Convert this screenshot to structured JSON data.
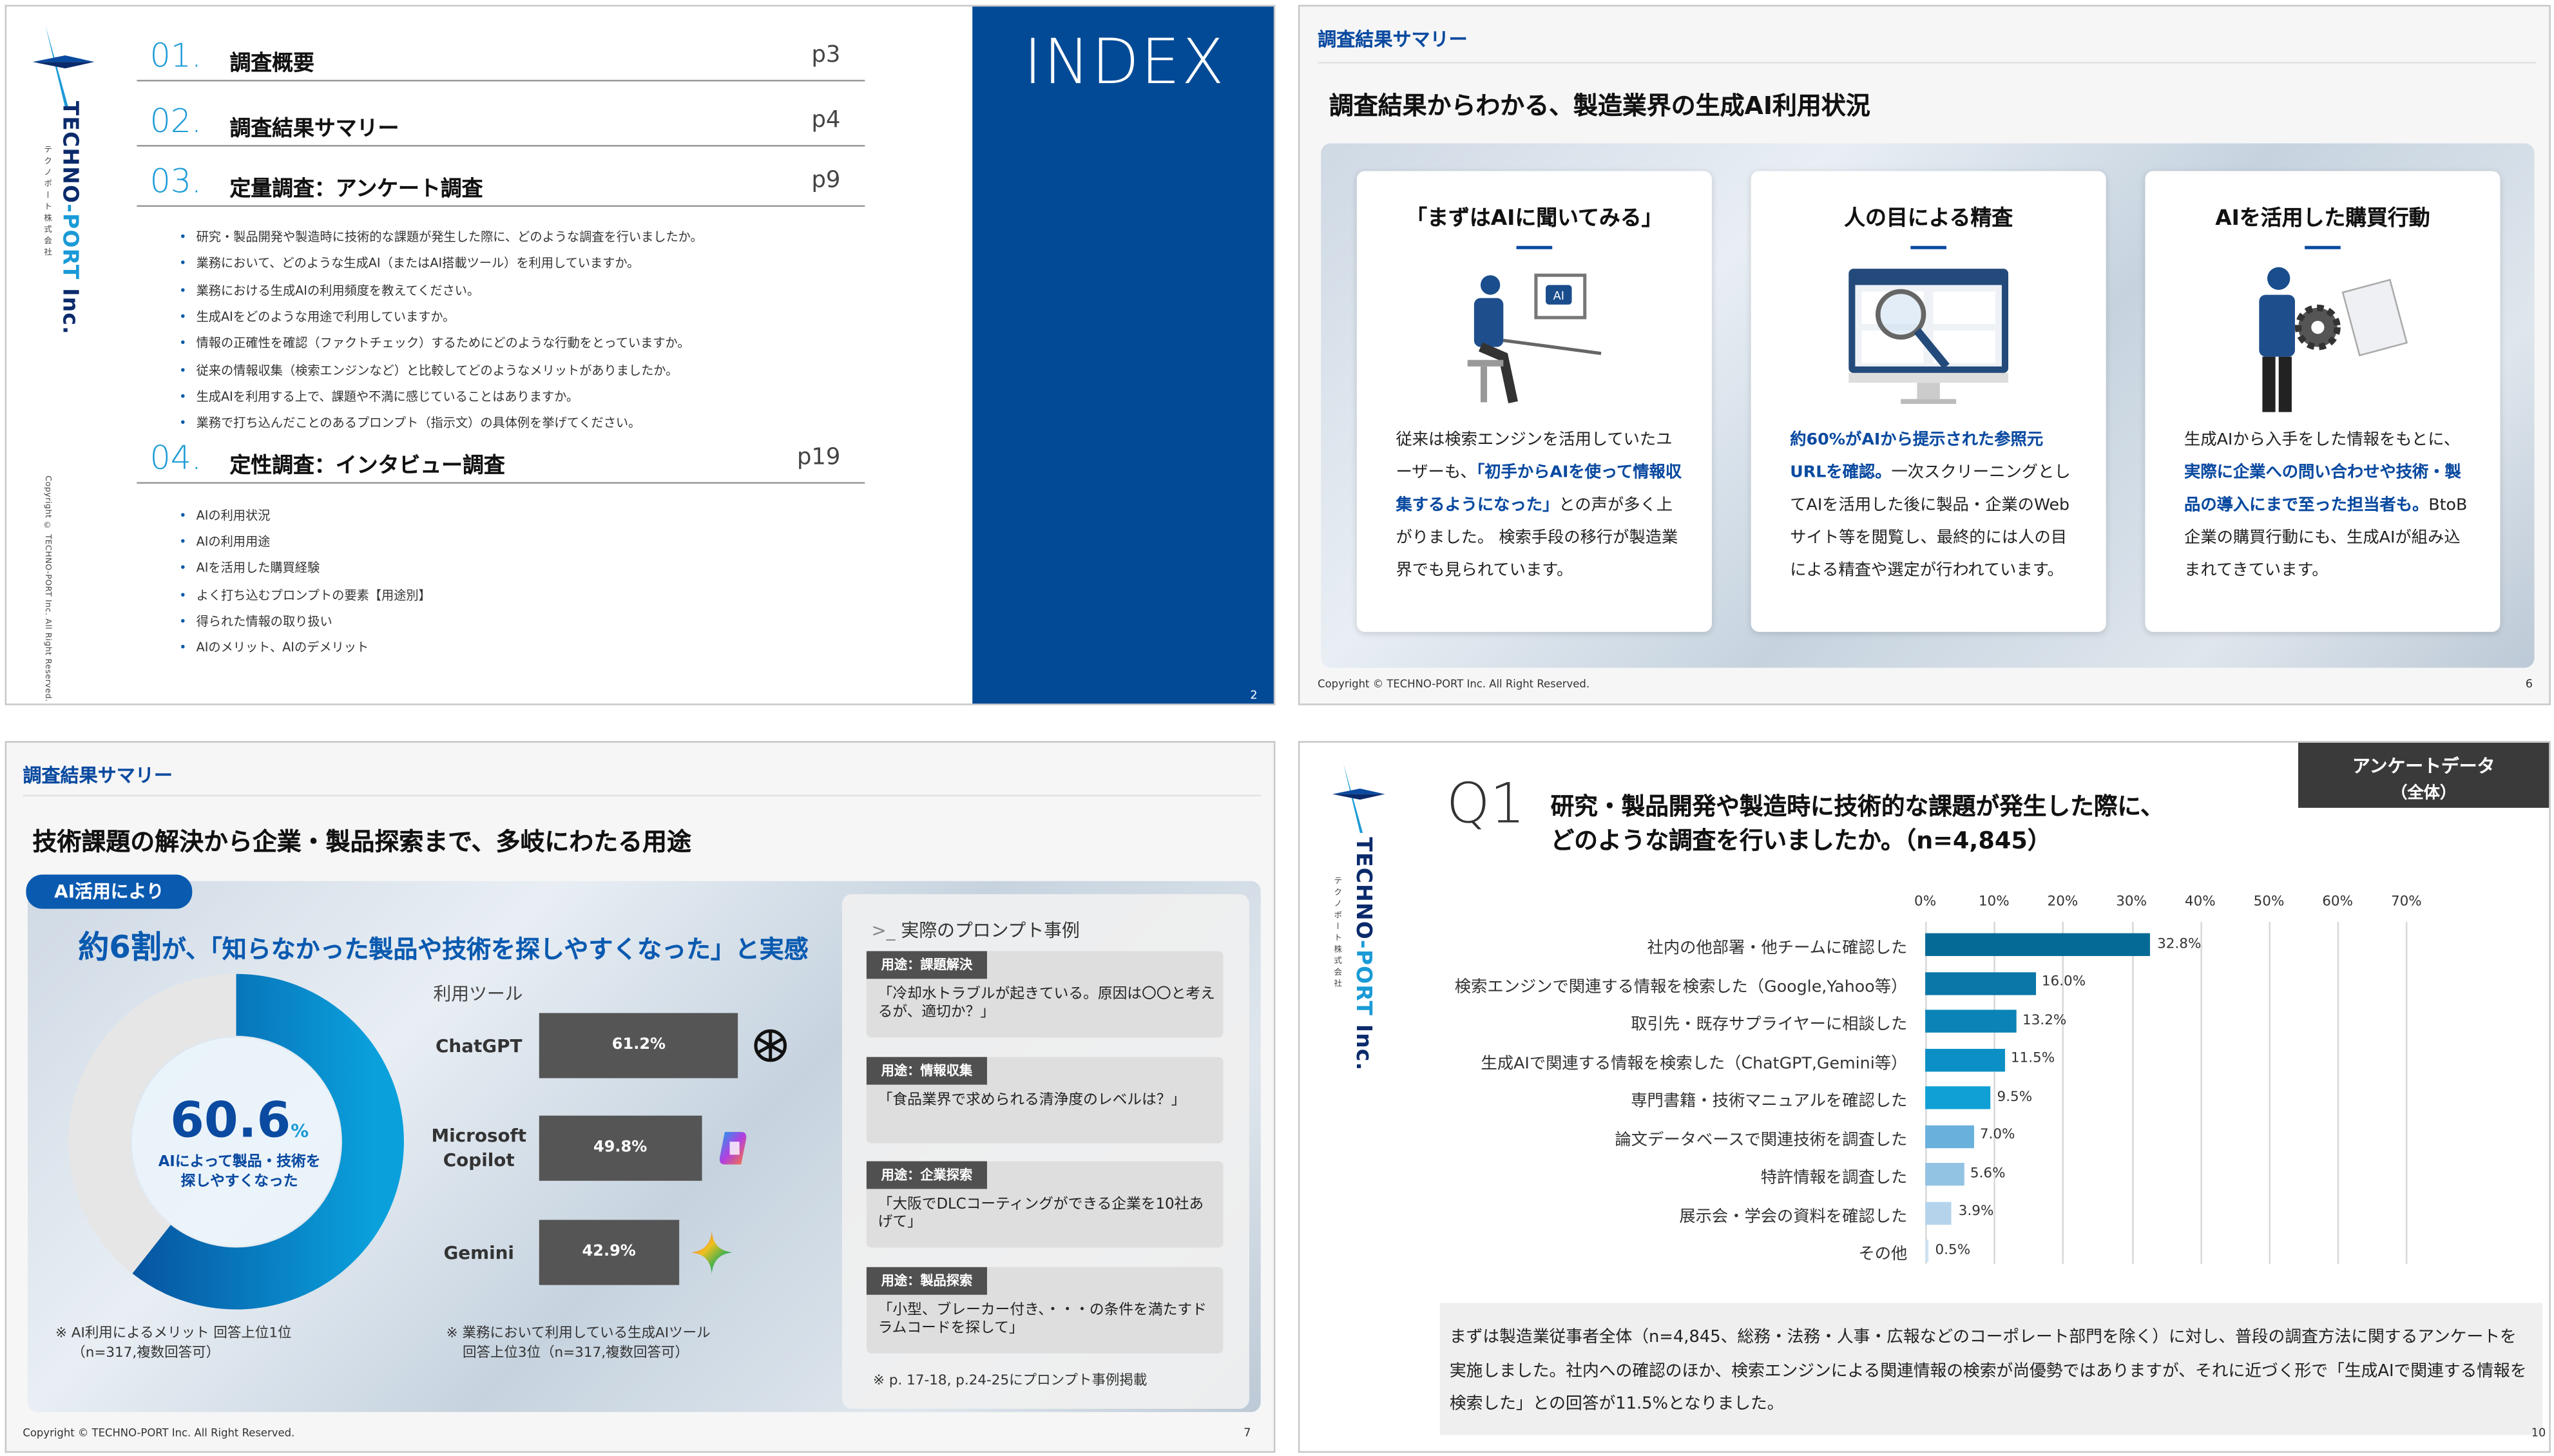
{
  "brand": {
    "name": "TECHNO-PORT Inc.",
    "name_main": "TECHNO",
    "name_hyphen": "-PORT",
    "name_inc": " Inc.",
    "kana": "テクノポート株式会社",
    "copyright": "Copyright © TECHNO-PORT Inc. All Right Reserved.",
    "accent": "#0a4aa0",
    "index_blue": "#034a96"
  },
  "slide_index": {
    "title": "INDEX",
    "page": "2",
    "sections": [
      {
        "num": "01.",
        "title": "調査概要",
        "page": "p3",
        "bullets": []
      },
      {
        "num": "02.",
        "title": "調査結果サマリー",
        "page": "p4",
        "bullets": []
      },
      {
        "num": "03.",
        "title": "定量調査：アンケート調査",
        "page": "p9",
        "bullets": [
          "研究・製品開発や製造時に技術的な課題が発生した際に、どのような調査を行いましたか。",
          "業務において、どのような生成AI（またはAI搭載ツール）を利用していますか。",
          "業務における生成AIの利用頻度を教えてください。",
          "生成AIをどのような用途で利用していますか。",
          "情報の正確性を確認（ファクトチェック）するためにどのような行動をとっていますか。",
          "従来の情報収集（検索エンジンなど）と比較してどのようなメリットがありましたか。",
          "生成AIを利用する上で、課題や不満に感じていることはありますか。",
          "業務で打ち込んだことのあるプロンプト（指示文）の具体例を挙げてください。"
        ]
      },
      {
        "num": "04.",
        "title": "定性調査：インタビュー調査",
        "page": "p19",
        "bullets": [
          "AIの利用状況",
          "AIの利用用途",
          "AIを活用した購買経験",
          "よく打ち込むプロンプトの要素【用途別】",
          "得られた情報の取り扱い",
          "AIのメリット、AIのデメリット"
        ]
      }
    ]
  },
  "slide_summary1": {
    "section": "調査結果サマリー",
    "title": "調査結果からわかる、製造業界の生成AI利用状況",
    "page": "6",
    "cards": [
      {
        "title": "「まずはAIに聞いてみる」",
        "illustration": "worker-at-computer-ai",
        "ai_label": "AI",
        "text": [
          {
            "t": "従来は検索エンジンを活用していたユーザーも、"
          },
          {
            "t": "「初手からAIを使って情報収集するようになった」",
            "hl": true
          },
          {
            "t": "との声が多く上がりました。 検索手段の移行が製造業界でも見られています。"
          }
        ]
      },
      {
        "title": "人の目による精査",
        "illustration": "monitor-magnifier",
        "text": [
          {
            "t": "約60%がAIから提示された参照元URLを確認。",
            "hl": true
          },
          {
            "t": "一次スクリーニングとしてAIを活用した後に製品・企業のWebサイト等を閲覧し、最終的には人の目による精査や選定が行われています。"
          }
        ]
      },
      {
        "title": "AIを活用した購買行動",
        "illustration": "worker-gear-purchase-order",
        "text": [
          {
            "t": "生成AIから入手をした情報をもとに、"
          },
          {
            "t": "実際に企業への問い合わせや技術・製品の導入にまで至った担当者も。",
            "hl": true
          },
          {
            "t": "BtoB企業の購買行動にも、生成AIが組み込まれてきています。"
          }
        ]
      }
    ]
  },
  "slide_summary2": {
    "section": "調査結果サマリー",
    "title": "技術課題の解決から企業・製品探索まで、多岐にわたる用途",
    "page": "7",
    "badge": "AI活用により",
    "headline_strong": "約6割",
    "headline_rest": "が、「知らなかった製品や技術を探しやすくなった」と実感",
    "donut_value": "60.6",
    "donut_unit": "%",
    "donut_caption": "AIによって製品・技術を探しやすくなった",
    "tools_label": "利用ツール",
    "note_left": [
      "※ AI利用によるメリット 回答上位1位",
      "（n=317,複数回答可）"
    ],
    "note_mid": [
      "※ 業務において利用している生成AIツール",
      "回答上位3位（n=317,複数回答可）"
    ],
    "prompt_title": "実際のプロンプト事例",
    "prompt_icon": "terminal-prompt-icon",
    "cases": [
      {
        "tag": "用途：課題解決",
        "text": "「冷却水トラブルが起きている。原因は〇〇と考えるが、適切か？」"
      },
      {
        "tag": "用途：情報収集",
        "text": "「食品業界で求められる清浄度のレベルは？」"
      },
      {
        "tag": "用途：企業探索",
        "text": "「大阪でDLCコーティングができる企業を10社あげて」"
      },
      {
        "tag": "用途：製品探索",
        "text": "「小型、ブレーカー付き、・・・の条件を満たすドラムコードを探して」"
      }
    ],
    "cases_note": "※ p. 17-18, p.24-25にプロンプト事例掲載"
  },
  "slide_q1": {
    "q": "Q1",
    "question_line1": "研究・製品開発や製造時に技術的な課題が発生した際に、",
    "question_line2": "どのような調査を行いましたか。（n=4,845）",
    "tag_line1": "アンケートデータ",
    "tag_line2": "（全体）",
    "page": "10",
    "summary": "まずは製造業従事者全体（n=4,845、総務・法務・人事・広報などのコーポレート部門を除く）に対し、普段の調査方法に関するアンケートを実施しました。社内への確認のほか、検索エンジンによる関連情報の検索が尚優勢ではありますが、それに近づく形で「生成AIで関連する情報を検索した」との回答が11.5%となりました。"
  },
  "chart_data": [
    {
      "type": "bar",
      "orientation": "horizontal",
      "xlim": [
        0,
        70
      ],
      "grid": true,
      "ticks": [
        "0%",
        "10%",
        "20%",
        "30%",
        "40%",
        "50%",
        "60%",
        "70%"
      ],
      "categories": [
        "社内の他部署・他チームに確認した",
        "検索エンジンで関連する情報を検索した（Google,Yahoo等）",
        "取引先・既存サプライヤーに相談した",
        "生成AIで関連する情報を検索した（ChatGPT,Gemini等）",
        "専門書籍・技術マニュアルを確認した",
        "論文データベースで関連技術を調査した",
        "特許情報を調査した",
        "展示会・学会の資料を確認した",
        "その他"
      ],
      "values": [
        32.8,
        16.0,
        13.2,
        11.5,
        9.5,
        7.0,
        5.6,
        3.9,
        0.5
      ],
      "labels": [
        "32.8%",
        "16.0%",
        "13.2%",
        "11.5%",
        "9.5%",
        "7.0%",
        "5.6%",
        "3.9%",
        "0.5%"
      ],
      "colors": [
        "#066a96",
        "#0a77a8",
        "#0b83b6",
        "#0c8fc4",
        "#10a0d6",
        "#69b0dc",
        "#93c3e3",
        "#b5d4ec",
        "#d0e3f1"
      ]
    },
    {
      "type": "bar",
      "orientation": "horizontal",
      "categories": [
        "ChatGPT",
        "Microsoft Copilot",
        "Gemini"
      ],
      "values": [
        61.2,
        49.8,
        42.9
      ],
      "labels": [
        "61.2%",
        "49.8%",
        "42.9%"
      ],
      "icons": [
        "openai-icon",
        "copilot-icon",
        "gemini-icon"
      ],
      "color": "#555555"
    },
    {
      "type": "pie",
      "style": "donut",
      "values": [
        60.6,
        39.4
      ],
      "colors": [
        "#0a5ab0",
        "#e6e6e6"
      ]
    }
  ]
}
